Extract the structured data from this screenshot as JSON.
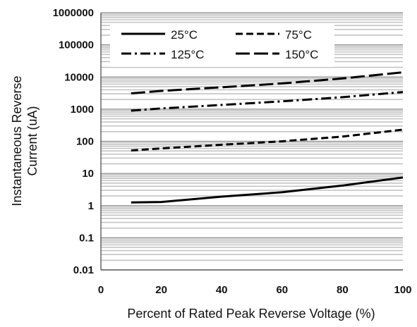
{
  "chart_data": {
    "type": "line",
    "title": "",
    "xlabel": "Percent of  Rated Peak Reverse Voltage (%)",
    "ylabel": "Instantaneous Reverse Current (uA)",
    "ylabel_lines": [
      "Instantaneous Reverse",
      "Current (uA)"
    ],
    "xlim": [
      0,
      100
    ],
    "ylim": [
      0.01,
      1000000
    ],
    "yscale": "log",
    "x_ticks": [
      "0",
      "20",
      "40",
      "60",
      "80",
      "100"
    ],
    "y_ticks": [
      "0.01",
      "0.1",
      "1",
      "10",
      "100",
      "1000",
      "10000",
      "100000",
      "1000000"
    ],
    "grid": true,
    "legend": "top-left inside plot, two columns",
    "series": [
      {
        "name": "25°C",
        "style": "solid",
        "color": "#000000",
        "x": [
          10,
          20,
          40,
          60,
          80,
          100
        ],
        "y": [
          1.25,
          1.3,
          1.9,
          2.6,
          4.2,
          7.5
        ]
      },
      {
        "name": "75°C",
        "style": "dashed",
        "color": "#000000",
        "x": [
          10,
          20,
          40,
          60,
          80,
          100
        ],
        "y": [
          52,
          60,
          78,
          100,
          140,
          230
        ]
      },
      {
        "name": "125°C",
        "style": "dash-dot",
        "color": "#000000",
        "x": [
          10,
          20,
          40,
          60,
          80,
          100
        ],
        "y": [
          900,
          1050,
          1350,
          1750,
          2350,
          3400
        ]
      },
      {
        "name": "150°C",
        "style": "long-dash",
        "color": "#000000",
        "x": [
          10,
          20,
          40,
          60,
          80,
          100
        ],
        "y": [
          3100,
          3700,
          4800,
          6300,
          9000,
          14000
        ]
      }
    ]
  }
}
